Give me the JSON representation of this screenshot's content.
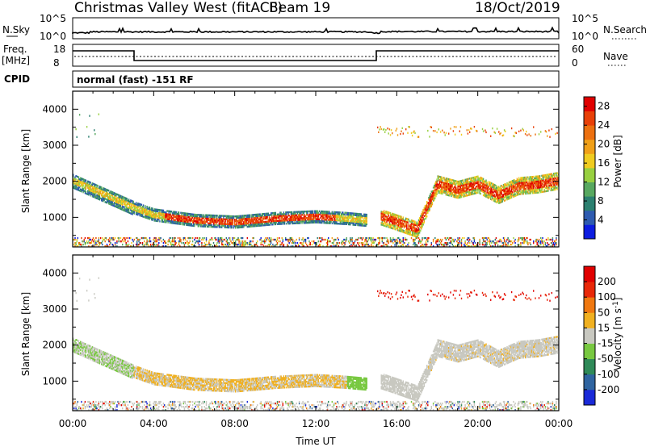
{
  "header": {
    "title": "Christmas Valley West (fitACF)",
    "beam": "Beam 19",
    "date": "18/Oct/2019"
  },
  "status_panels": {
    "nsky": {
      "label": "N.Sky",
      "ticks": [
        "10^5",
        "10^0"
      ]
    },
    "nsearch": {
      "label": "N.Search",
      "ticks": [
        "10^5",
        "10^0"
      ]
    },
    "freq": {
      "label": "Freq.",
      "unit": "[MHz]",
      "ticks": [
        "18",
        "8"
      ]
    },
    "nave": {
      "label": "Nave",
      "ticks": [
        "60",
        "0"
      ]
    },
    "cpid": {
      "label": "CPID",
      "value": "normal (fast) -151 RF"
    }
  },
  "chart_data": [
    {
      "type": "heatmap",
      "name": "power",
      "xlabel": "",
      "ylabel": "Slant Range [km]",
      "xlim": [
        0,
        24
      ],
      "ylim": [
        180,
        4500
      ],
      "yticks": [
        1000,
        2000,
        3000,
        4000
      ],
      "colorbar": {
        "label": "Power [dB]",
        "ticks": [
          "4",
          "8",
          "12",
          "16",
          "20",
          "24",
          "28"
        ],
        "colors": [
          "#0d1de0",
          "#2e5bb0",
          "#2c8070",
          "#58a860",
          "#98d040",
          "#f0cc20",
          "#f0a018",
          "#ec7010",
          "#e84008",
          "#e00000"
        ]
      },
      "echo_bands": [
        {
          "x": [
            0,
            1,
            2,
            3,
            4,
            6,
            8,
            10,
            12,
            13.5,
            14.5
          ],
          "y": [
            2000,
            1750,
            1500,
            1250,
            1050,
            900,
            850,
            950,
            1000,
            950,
            900
          ],
          "level": "mixed"
        },
        {
          "x": [
            15.2,
            16,
            17,
            18,
            19,
            20,
            21,
            22,
            23,
            24
          ],
          "y": [
            1000,
            850,
            650,
            1900,
            1750,
            1900,
            1600,
            1850,
            1900,
            2000
          ],
          "level": "high"
        }
      ]
    },
    {
      "type": "heatmap",
      "name": "velocity",
      "xlabel": "Time UT",
      "ylabel": "Slant Range [km]",
      "xlim": [
        0,
        24
      ],
      "ylim": [
        180,
        4500
      ],
      "yticks": [
        1000,
        2000,
        3000,
        4000
      ],
      "xticks": [
        "00:00",
        "04:00",
        "08:00",
        "12:00",
        "16:00",
        "20:00",
        "00:00"
      ],
      "colorbar": {
        "label": "Velocity [m s^-1]",
        "ticks": [
          "200",
          "100",
          "50",
          "15",
          "-15",
          "-50",
          "-100",
          "-200"
        ],
        "colors": [
          "#1a2ad8",
          "#2f64a0",
          "#2f8a58",
          "#78c840",
          "#c8c8c0",
          "#f0b020",
          "#f07810",
          "#e82808",
          "#e00000"
        ]
      }
    }
  ]
}
